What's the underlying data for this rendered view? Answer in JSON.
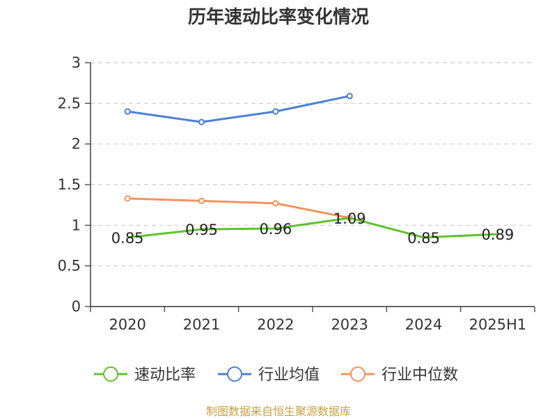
{
  "chart_data": {
    "type": "line",
    "title": "历年速动比率变化情况",
    "categories": [
      "2020",
      "2021",
      "2022",
      "2023",
      "2024",
      "2025H1"
    ],
    "ylim": [
      0,
      3
    ],
    "yticks": [
      0,
      0.5,
      1,
      1.5,
      2,
      2.5,
      3
    ],
    "ytick_labels": [
      "0",
      "0.5",
      "1",
      "1.5",
      "2",
      "2.5",
      "3"
    ],
    "grid": true,
    "legend_position": "bottom",
    "series": [
      {
        "name": "速动比率",
        "color": "#5cc22a",
        "values": [
          0.85,
          0.95,
          0.96,
          1.09,
          0.85,
          0.89
        ],
        "labels": [
          "0.85",
          "0.95",
          "0.96",
          "1.09",
          "0.85",
          "0.89"
        ],
        "markers": false
      },
      {
        "name": "行业均值",
        "color": "#4a7fd8",
        "values": [
          2.4,
          2.27,
          2.4,
          2.59,
          null,
          null
        ],
        "markers": true
      },
      {
        "name": "行业中位数",
        "color": "#f7915a",
        "values": [
          1.33,
          1.3,
          1.27,
          1.09,
          null,
          null
        ],
        "markers": true
      }
    ],
    "source_note": "制图数据来自恒生聚源数据库"
  }
}
